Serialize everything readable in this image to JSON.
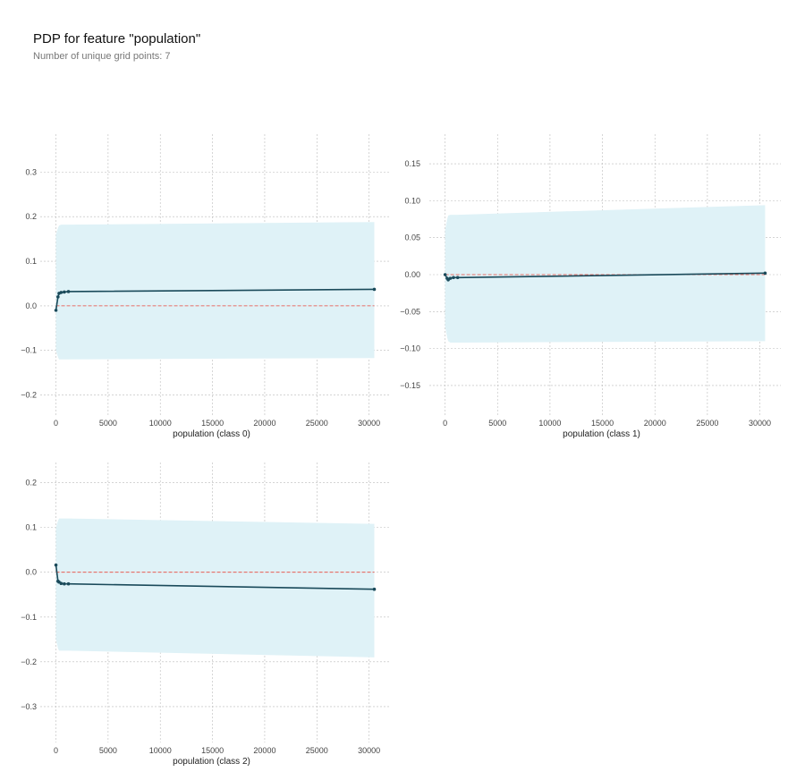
{
  "header": {
    "title": "PDP for feature \"population\"",
    "subtitle": "Number of unique grid points: 7"
  },
  "colors": {
    "line": "#1a4a5a",
    "band": "#dff2f7",
    "zero_line": "#e8473b",
    "grid": "#bbbbbb"
  },
  "chart_data": [
    {
      "type": "line",
      "xlabel": "population (class 0)",
      "x": [
        3,
        200,
        300,
        500,
        800,
        1200,
        30500
      ],
      "values": [
        -0.01,
        0.02,
        0.028,
        0.03,
        0.031,
        0.032,
        0.037
      ],
      "band_upper": [
        0.16,
        0.175,
        0.18,
        0.182,
        0.182,
        0.182,
        0.188
      ],
      "band_lower": [
        -0.1,
        -0.115,
        -0.12,
        -0.12,
        -0.12,
        -0.12,
        -0.117
      ],
      "xlim": [
        -1500,
        32000
      ],
      "ylim": [
        -0.245,
        0.385
      ],
      "xticks": [
        0,
        5000,
        10000,
        15000,
        20000,
        25000,
        30000
      ],
      "yticks": [
        -0.2,
        -0.1,
        0.0,
        0.1,
        0.2,
        0.3
      ],
      "ytick_labels": [
        "−0.2",
        "−0.1",
        "0.0",
        "0.1",
        "0.2",
        "0.3"
      ],
      "grid": true
    },
    {
      "type": "line",
      "xlabel": "population (class 1)",
      "x": [
        3,
        200,
        300,
        500,
        800,
        1200,
        30500
      ],
      "values": [
        0.0,
        -0.005,
        -0.007,
        -0.005,
        -0.004,
        -0.004,
        0.002
      ],
      "band_upper": [
        0.06,
        0.075,
        0.08,
        0.081,
        0.081,
        0.081,
        0.094
      ],
      "band_lower": [
        -0.07,
        -0.085,
        -0.09,
        -0.092,
        -0.092,
        -0.092,
        -0.09
      ],
      "xlim": [
        -1500,
        32000
      ],
      "ylim": [
        -0.19,
        0.19
      ],
      "xticks": [
        0,
        5000,
        10000,
        15000,
        20000,
        25000,
        30000
      ],
      "yticks": [
        -0.15,
        -0.1,
        -0.05,
        0.0,
        0.05,
        0.1,
        0.15
      ],
      "ytick_labels": [
        "−0.15",
        "−0.10",
        "−0.05",
        "0.00",
        "0.05",
        "0.10",
        "0.15"
      ],
      "grid": true
    },
    {
      "type": "line",
      "xlabel": "population (class 2)",
      "x": [
        3,
        200,
        300,
        500,
        800,
        1200,
        30500
      ],
      "values": [
        0.016,
        -0.02,
        -0.022,
        -0.025,
        -0.026,
        -0.026,
        -0.038
      ],
      "band_upper": [
        0.1,
        0.115,
        0.12,
        0.12,
        0.12,
        0.12,
        0.108
      ],
      "band_lower": [
        -0.15,
        -0.17,
        -0.175,
        -0.175,
        -0.175,
        -0.175,
        -0.19
      ],
      "xlim": [
        -1500,
        32000
      ],
      "ylim": [
        -0.38,
        0.245
      ],
      "xticks": [
        0,
        5000,
        10000,
        15000,
        20000,
        25000,
        30000
      ],
      "yticks": [
        -0.3,
        -0.2,
        -0.1,
        0.0,
        0.1,
        0.2
      ],
      "ytick_labels": [
        "−0.3",
        "−0.2",
        "−0.1",
        "0.0",
        "0.1",
        "0.2"
      ],
      "grid": true
    }
  ]
}
